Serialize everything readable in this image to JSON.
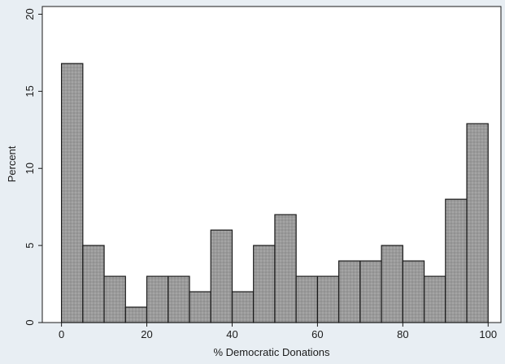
{
  "chart_data": {
    "type": "bar",
    "title": "",
    "xlabel": "% Democratic Donations",
    "ylabel": "Percent",
    "xlim": [
      -4.5,
      103
    ],
    "ylim": [
      0,
      20.5
    ],
    "x_ticks": [
      "0",
      "20",
      "40",
      "60",
      "80",
      "100"
    ],
    "x_tick_values": [
      0,
      20,
      40,
      60,
      80,
      100
    ],
    "y_ticks": [
      "0",
      "5",
      "10",
      "15",
      "20"
    ],
    "y_tick_values": [
      0,
      5,
      10,
      15,
      20
    ],
    "bin_width": 5,
    "bins": [
      {
        "start": 0,
        "end": 5,
        "value": 16.8
      },
      {
        "start": 5,
        "end": 10,
        "value": 5
      },
      {
        "start": 10,
        "end": 15,
        "value": 3
      },
      {
        "start": 15,
        "end": 20,
        "value": 1
      },
      {
        "start": 20,
        "end": 25,
        "value": 3
      },
      {
        "start": 25,
        "end": 30,
        "value": 3
      },
      {
        "start": 30,
        "end": 35,
        "value": 2
      },
      {
        "start": 35,
        "end": 40,
        "value": 6
      },
      {
        "start": 40,
        "end": 45,
        "value": 2
      },
      {
        "start": 45,
        "end": 50,
        "value": 5
      },
      {
        "start": 50,
        "end": 55,
        "value": 7
      },
      {
        "start": 55,
        "end": 60,
        "value": 3
      },
      {
        "start": 60,
        "end": 65,
        "value": 3
      },
      {
        "start": 65,
        "end": 70,
        "value": 4
      },
      {
        "start": 70,
        "end": 75,
        "value": 4
      },
      {
        "start": 75,
        "end": 80,
        "value": 5
      },
      {
        "start": 80,
        "end": 85,
        "value": 4
      },
      {
        "start": 85,
        "end": 90,
        "value": 3
      },
      {
        "start": 90,
        "end": 95,
        "value": 8
      },
      {
        "start": 95,
        "end": 100,
        "value": 12.9
      }
    ],
    "grid": false,
    "legend": "none",
    "colors": {
      "background": "#e8eef3",
      "plot_area": "#ffffff",
      "bar_fill": "#999999",
      "bar_stroke": "#1a1a1a",
      "axis": "#1a1a1a"
    }
  }
}
